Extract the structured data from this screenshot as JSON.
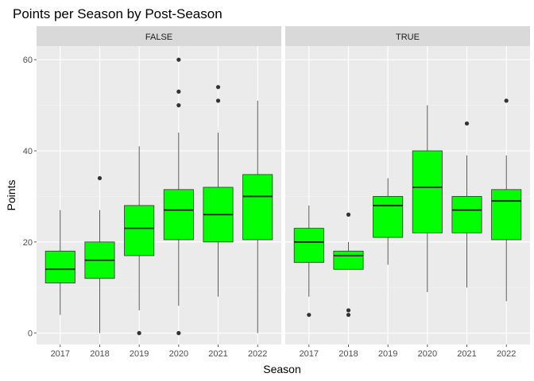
{
  "chart_data": {
    "type": "boxplot",
    "title": "Points per Season by Post-Season",
    "xlabel": "Season",
    "ylabel": "Points",
    "ylim": [
      -2.5,
      63
    ],
    "yticks": [
      0,
      20,
      40,
      60
    ],
    "categories": [
      "2017",
      "2018",
      "2019",
      "2020",
      "2021",
      "2022"
    ],
    "box_fill": "#00ff00",
    "panel_bg": "#ebebeb",
    "strip_bg": "#d9d9d9",
    "grid": true,
    "facets": [
      {
        "label": "FALSE",
        "boxes": [
          {
            "x": "2017",
            "whisker_low": 4,
            "q1": 11,
            "median": 14,
            "q3": 18,
            "whisker_high": 27,
            "outliers": []
          },
          {
            "x": "2018",
            "whisker_low": 0,
            "q1": 12,
            "median": 16,
            "q3": 20,
            "whisker_high": 27,
            "outliers": [
              34
            ]
          },
          {
            "x": "2019",
            "whisker_low": 5,
            "q1": 17,
            "median": 23,
            "q3": 28,
            "whisker_high": 41,
            "outliers": [
              0
            ]
          },
          {
            "x": "2020",
            "whisker_low": 6,
            "q1": 20.5,
            "median": 27,
            "q3": 31.5,
            "whisker_high": 44,
            "outliers": [
              0,
              50,
              53,
              60
            ]
          },
          {
            "x": "2021",
            "whisker_low": 8,
            "q1": 20,
            "median": 26,
            "q3": 32,
            "whisker_high": 44,
            "outliers": [
              51,
              54
            ]
          },
          {
            "x": "2022",
            "whisker_low": 0,
            "q1": 20.5,
            "median": 30,
            "q3": 34.8,
            "whisker_high": 51,
            "outliers": []
          }
        ]
      },
      {
        "label": "TRUE",
        "boxes": [
          {
            "x": "2017",
            "whisker_low": 8,
            "q1": 15.5,
            "median": 20,
            "q3": 23,
            "whisker_high": 28,
            "outliers": [
              4
            ]
          },
          {
            "x": "2018",
            "whisker_low": 14,
            "q1": 14,
            "median": 17,
            "q3": 18,
            "whisker_high": 20,
            "outliers": [
              4,
              5,
              26
            ]
          },
          {
            "x": "2019",
            "whisker_low": 15,
            "q1": 21,
            "median": 28,
            "q3": 30,
            "whisker_high": 34,
            "outliers": []
          },
          {
            "x": "2020",
            "whisker_low": 9,
            "q1": 22,
            "median": 32,
            "q3": 40,
            "whisker_high": 50,
            "outliers": []
          },
          {
            "x": "2021",
            "whisker_low": 10,
            "q1": 22,
            "median": 27,
            "q3": 30,
            "whisker_high": 39,
            "outliers": [
              46
            ]
          },
          {
            "x": "2022",
            "whisker_low": 7,
            "q1": 20.5,
            "median": 29,
            "q3": 31.5,
            "whisker_high": 39,
            "outliers": [
              51
            ]
          }
        ]
      }
    ]
  }
}
